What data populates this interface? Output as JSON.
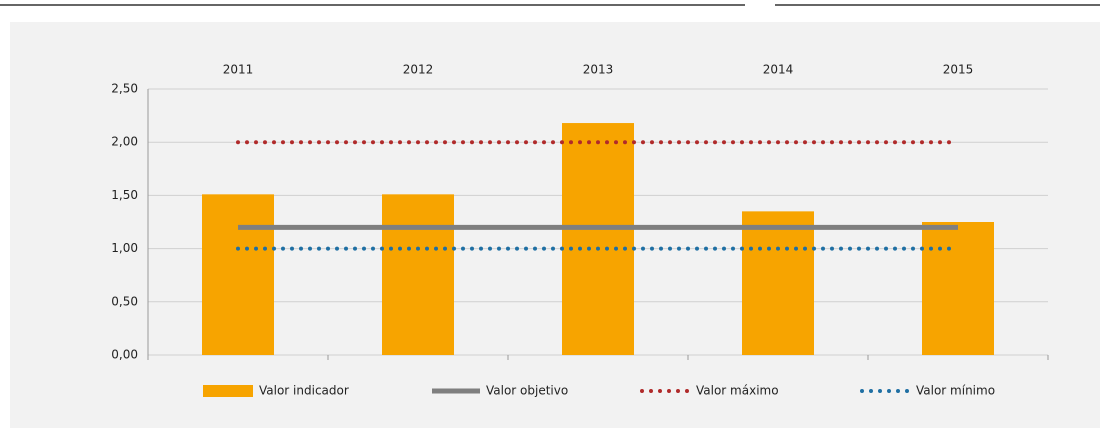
{
  "chart_data": {
    "type": "bar",
    "categories": [
      "2011",
      "2012",
      "2013",
      "2014",
      "2015"
    ],
    "series": [
      {
        "name": "Valor indicador",
        "type": "bar",
        "color": "#f7a400",
        "values": [
          1.51,
          1.51,
          2.18,
          1.35,
          1.25
        ]
      },
      {
        "name": "Valor objetivo",
        "type": "line",
        "style": "solid",
        "color": "#7f7f7f",
        "values": [
          1.2,
          1.2,
          1.2,
          1.2,
          1.2
        ]
      },
      {
        "name": "Valor máximo",
        "type": "line",
        "style": "dotted",
        "color": "#b02a2a",
        "values": [
          2.0,
          2.0,
          2.0,
          2.0,
          2.0
        ]
      },
      {
        "name": "Valor mínimo",
        "type": "line",
        "style": "dotted",
        "color": "#1f6fa3",
        "values": [
          1.0,
          1.0,
          1.0,
          1.0,
          1.0
        ]
      }
    ],
    "ylim": [
      0,
      2.5
    ],
    "yticks": [
      {
        "value": 0,
        "label": "0,00"
      },
      {
        "value": 0.5,
        "label": "0,50"
      },
      {
        "value": 1,
        "label": "1,00"
      },
      {
        "value": 1.5,
        "label": "1,50"
      },
      {
        "value": 2,
        "label": "2,00"
      },
      {
        "value": 2.5,
        "label": "2,50"
      }
    ],
    "grid": true,
    "legend": "bottom"
  }
}
